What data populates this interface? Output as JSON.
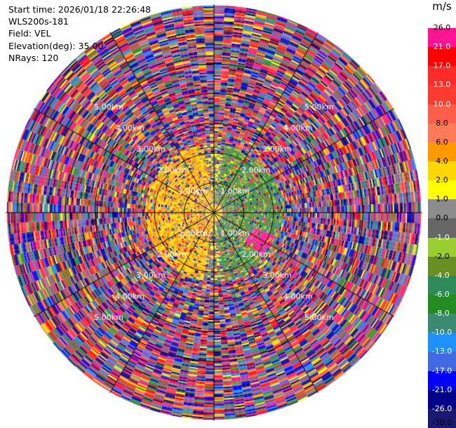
{
  "header": {
    "start_time": "Start time: 2026/01/18 22:26:48",
    "instrument": "WLS200s-181",
    "field": "Field: VEL",
    "elevation": "Elevation(deg): 35.00",
    "nrays": "NRays: 120"
  },
  "colorbar": {
    "unit": "m/s",
    "ticks": [
      "26.0",
      "21.0",
      "17.0",
      "13.0",
      "10.0",
      "8.0",
      "6.0",
      "4.0",
      "2.0",
      "1.0",
      "0.0",
      "-1.0",
      "-2.0",
      "-4.0",
      "-6.0",
      "-8.0",
      "-10.0",
      "-13.0",
      "-17.0",
      "-21.0",
      "-26.0",
      "-30.0"
    ],
    "tick_colors": [
      "#000000",
      "#ffffff",
      "#ffffff",
      "#ffffff",
      "#ffffff",
      "#000000",
      "#000000",
      "#000000",
      "#000000",
      "#000000",
      "#000000",
      "#ffffff",
      "#000000",
      "#ffffff",
      "#ffffff",
      "#ffffff",
      "#ffffff",
      "#ffffff",
      "#ffffff",
      "#ffffff",
      "#ffffff",
      "#000000"
    ],
    "colors": [
      "#ff1493",
      "#ff0000",
      "#ff2a2a",
      "#ff3b30",
      "#ff5f4a",
      "#ff7a55",
      "#ff9900",
      "#ffd700",
      "#ffff00",
      "#8c8c8c",
      "#666666",
      "#9acd32",
      "#6b8e23",
      "#2e8b57",
      "#228b22",
      "#3a8a70",
      "#1e90ff",
      "#4169e1",
      "#0000ff",
      "#00008b",
      "#191970"
    ]
  },
  "chart_data": {
    "type": "ppi",
    "field": "VEL",
    "units": "m/s",
    "elevation_deg": 35.0,
    "nrays": 120,
    "range_rings_km": [
      1.0,
      2.0,
      3.0,
      4.0,
      5.0
    ],
    "ring_labels": [
      "1.00km",
      "2.00km",
      "3.00km",
      "4.00km",
      "5.00km"
    ],
    "max_range_km": 7.0,
    "azimuth_lines_deg": [
      0,
      30,
      60,
      90,
      120,
      150,
      180,
      210,
      240,
      270,
      300,
      330
    ],
    "color_scale": {
      "boundaries": [
        26.0,
        21.0,
        17.0,
        13.0,
        10.0,
        8.0,
        6.0,
        4.0,
        2.0,
        1.0,
        0.0,
        -1.0,
        -2.0,
        -4.0,
        -6.0,
        -8.0,
        -10.0,
        -13.0,
        -17.0,
        -21.0,
        -26.0,
        -30.0
      ],
      "min": -30.0,
      "max": 26.0
    },
    "valid_data_range_km": [
      0.3,
      2.3
    ],
    "valid_data_pattern": {
      "west": "yellow/orange, approx 2 to 6 m/s",
      "east": "green, approx -1 to -8 m/s",
      "south_east": "magenta patch near 2 km, approx 26 m/s"
    }
  }
}
